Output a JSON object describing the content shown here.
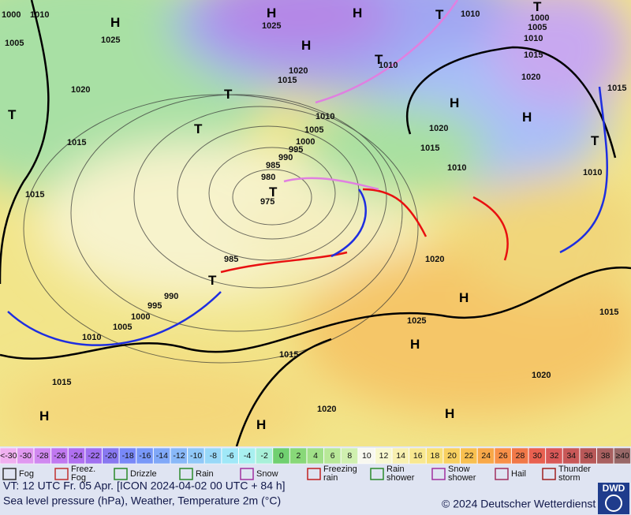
{
  "map": {
    "pressure_labels": [
      "1000",
      "1010",
      "1005",
      "1025",
      "1020",
      "1015",
      "1015",
      "1025",
      "1020",
      "1015",
      "1010",
      "1010",
      "1005",
      "1000",
      "995",
      "990",
      "985",
      "980",
      "975",
      "985",
      "990",
      "995",
      "1000",
      "1005",
      "1010",
      "1015",
      "1015",
      "1020",
      "1025",
      "1020",
      "1020",
      "1015",
      "1010",
      "1010",
      "1000",
      "1005",
      "1010",
      "1015",
      "1020",
      "1015",
      "1010",
      "1015",
      "1020"
    ],
    "pressure_centers": [
      "H",
      "H",
      "H",
      "H",
      "H",
      "H",
      "H",
      "H",
      "H",
      "H",
      "H",
      "T",
      "T",
      "T",
      "T",
      "T",
      "T",
      "T",
      "T",
      "T"
    ]
  },
  "temperature_scale": {
    "labels": [
      "<-30",
      "-30",
      "-28",
      "-26",
      "-24",
      "-22",
      "-20",
      "-18",
      "-16",
      "-14",
      "-12",
      "-10",
      "-8",
      "-6",
      "-4",
      "-2",
      "0",
      "2",
      "4",
      "6",
      "8",
      "10",
      "12",
      "14",
      "16",
      "18",
      "20",
      "22",
      "24",
      "26",
      "28",
      "30",
      "32",
      "34",
      "36",
      "38",
      "≥40"
    ],
    "colors": [
      "#f0b0f0",
      "#e098f0",
      "#d088f0",
      "#c078f0",
      "#b070f0",
      "#a070f0",
      "#8878f0",
      "#7888f8",
      "#7898f8",
      "#80a8f8",
      "#88b8f8",
      "#90c8f8",
      "#98d8f8",
      "#a0e8f8",
      "#a8f0f0",
      "#a8f0d8",
      "#70d070",
      "#88d878",
      "#a0e088",
      "#b8e898",
      "#d0f0b0",
      "#f8f8f0",
      "#f8f8d0",
      "#f8f0b0",
      "#f8e890",
      "#f8e078",
      "#f8d060",
      "#f8c050",
      "#f8a848",
      "#f89048",
      "#f07848",
      "#e86050",
      "#d85858",
      "#c85858",
      "#b85858",
      "#a86060",
      "#986868"
    ]
  },
  "weather_legend": [
    "Fog",
    "Freez. Fog",
    "Drizzle",
    "Rain",
    "Snow",
    "Freezing rain",
    "Rain shower",
    "Snow shower",
    "Hail",
    "Thunder storm"
  ],
  "footer": {
    "valid_time": "VT: 12 UTC Fr.  05 Apr. [ICON 2024-04-02  00 UTC + 84 h]",
    "description": "Sea level pressure (hPa), Weather, Temperature 2m (°C)",
    "copyright": "© 2024 Deutscher Wetterdienst",
    "logo": "DWD"
  }
}
